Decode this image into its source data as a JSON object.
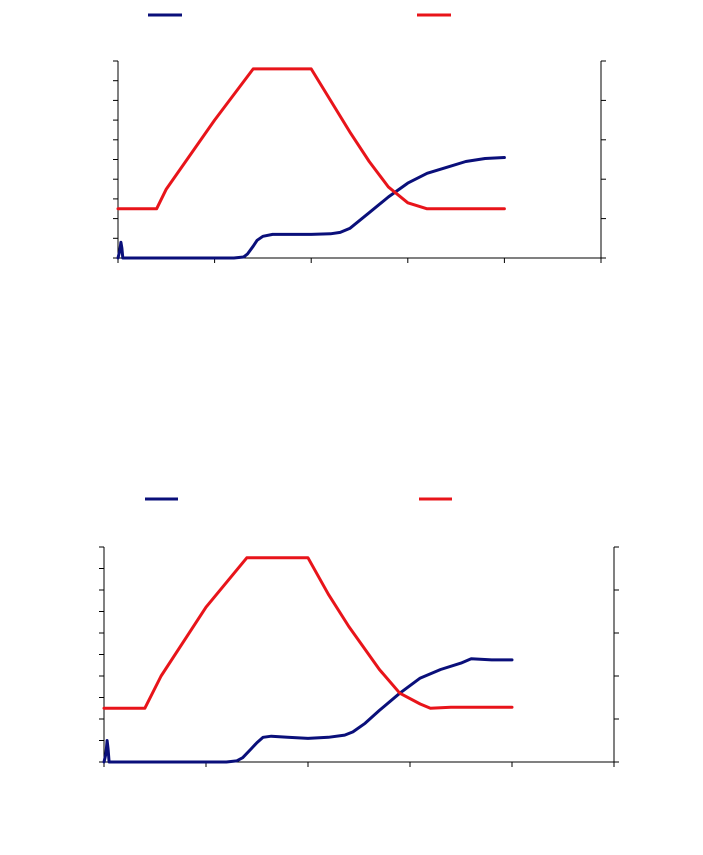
{
  "colors": {
    "series_blue": "#0a0f7a",
    "series_red": "#e8141a",
    "axis": "#000000"
  },
  "chart_data": [
    {
      "type": "line",
      "title": "",
      "xlabel": "",
      "ylabel_left": "",
      "ylabel_right": "",
      "xlim": [
        0,
        250
      ],
      "ylim_left": [
        0,
        100
      ],
      "ylim_right": [
        0,
        100
      ],
      "grid": false,
      "legend": "top",
      "x_tick_count": 6,
      "y_left_tick_count": 11,
      "y_right_tick_count": 6,
      "series": [
        {
          "axis": "left",
          "color": "#0a0f7a",
          "points": [
            [
              0,
              0
            ],
            [
              1,
              4
            ],
            [
              1.5,
              8
            ],
            [
              2,
              5
            ],
            [
              2.5,
              0
            ],
            [
              3,
              0
            ],
            [
              20,
              0
            ],
            [
              40,
              0
            ],
            [
              60,
              0
            ],
            [
              65,
              0.5
            ],
            [
              67,
              2
            ],
            [
              70,
              6
            ],
            [
              72,
              9
            ],
            [
              75,
              11
            ],
            [
              80,
              12
            ],
            [
              90,
              12
            ],
            [
              100,
              12
            ],
            [
              110,
              12.3
            ],
            [
              115,
              13
            ],
            [
              120,
              15
            ],
            [
              125,
              19
            ],
            [
              130,
              23
            ],
            [
              140,
              31
            ],
            [
              150,
              38
            ],
            [
              160,
              43
            ],
            [
              170,
              46
            ],
            [
              180,
              49
            ],
            [
              190,
              50.5
            ],
            [
              200,
              51
            ]
          ]
        },
        {
          "axis": "right",
          "color": "#e8141a",
          "points": [
            [
              0,
              25
            ],
            [
              10,
              25
            ],
            [
              20,
              25
            ],
            [
              25,
              35
            ],
            [
              50,
              70
            ],
            [
              70,
              96
            ],
            [
              80,
              96
            ],
            [
              90,
              96
            ],
            [
              100,
              96
            ],
            [
              110,
              80
            ],
            [
              120,
              64
            ],
            [
              130,
              49
            ],
            [
              140,
              36
            ],
            [
              150,
              28
            ],
            [
              160,
              25
            ],
            [
              170,
              25
            ],
            [
              180,
              25
            ],
            [
              190,
              25
            ],
            [
              200,
              25
            ]
          ]
        }
      ]
    },
    {
      "type": "line",
      "title": "",
      "xlabel": "",
      "ylabel_left": "",
      "ylabel_right": "",
      "xlim": [
        0,
        250
      ],
      "ylim_left": [
        0,
        100
      ],
      "ylim_right": [
        0,
        100
      ],
      "grid": false,
      "legend": "top",
      "x_tick_count": 6,
      "y_left_tick_count": 11,
      "y_right_tick_count": 6,
      "series": [
        {
          "axis": "left",
          "color": "#0a0f7a",
          "points": [
            [
              0,
              0
            ],
            [
              1,
              4
            ],
            [
              1.5,
              10
            ],
            [
              2,
              6
            ],
            [
              2.5,
              0
            ],
            [
              3,
              0
            ],
            [
              20,
              0
            ],
            [
              40,
              0
            ],
            [
              60,
              0
            ],
            [
              65,
              0.5
            ],
            [
              68,
              2
            ],
            [
              72,
              6
            ],
            [
              75,
              9
            ],
            [
              78,
              11.5
            ],
            [
              82,
              12
            ],
            [
              90,
              11.5
            ],
            [
              100,
              11
            ],
            [
              110,
              11.5
            ],
            [
              118,
              12.5
            ],
            [
              122,
              14
            ],
            [
              128,
              18
            ],
            [
              135,
              24
            ],
            [
              145,
              32
            ],
            [
              155,
              39
            ],
            [
              165,
              43
            ],
            [
              175,
              46
            ],
            [
              180,
              48
            ],
            [
              190,
              47.5
            ],
            [
              200,
              47.5
            ]
          ]
        },
        {
          "axis": "right",
          "color": "#e8141a",
          "points": [
            [
              0,
              25
            ],
            [
              10,
              25
            ],
            [
              20,
              25
            ],
            [
              28,
              40
            ],
            [
              50,
              72
            ],
            [
              70,
              95
            ],
            [
              80,
              95
            ],
            [
              90,
              95
            ],
            [
              100,
              95
            ],
            [
              110,
              78
            ],
            [
              120,
              63
            ],
            [
              135,
              43
            ],
            [
              145,
              32
            ],
            [
              155,
              27
            ],
            [
              160,
              25
            ],
            [
              170,
              25.5
            ],
            [
              180,
              25.5
            ],
            [
              190,
              25.5
            ],
            [
              200,
              25.5
            ]
          ]
        }
      ]
    }
  ]
}
